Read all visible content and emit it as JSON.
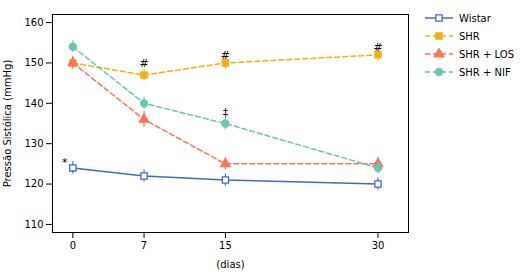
{
  "chart_data": {
    "type": "line",
    "xlabel": "(dias)",
    "ylabel": "Pressão Sistólica (mmHg)",
    "x": [
      0,
      7,
      15,
      30
    ],
    "xlim": [
      -2,
      33
    ],
    "xticks": [
      0,
      7,
      15,
      30
    ],
    "ylim": [
      108,
      162
    ],
    "yticks": [
      110,
      120,
      130,
      140,
      150,
      160
    ],
    "grid": false,
    "legend": "right",
    "series": [
      {
        "name": "Wistar",
        "values": [
          124,
          122,
          121,
          120
        ],
        "errors": [
          1.5,
          1.5,
          1.5,
          1.5
        ],
        "marker": "open-square",
        "line_style": "solid"
      },
      {
        "name": "SHR",
        "values": [
          150,
          147,
          150,
          152
        ],
        "errors": [
          1.5,
          1.5,
          1.5,
          1.5
        ],
        "marker": "square",
        "line_style": "dashed"
      },
      {
        "name": "SHR + LOS",
        "values": [
          150,
          136,
          125,
          125
        ],
        "errors": [
          1.5,
          2.0,
          1.5,
          1.5
        ],
        "marker": "triangle",
        "line_style": "dashed"
      },
      {
        "name": "SHR + NIF",
        "values": [
          154,
          140,
          135,
          124
        ],
        "errors": [
          1.5,
          1.5,
          1.5,
          1.5
        ],
        "marker": "circle",
        "line_style": "dashed"
      }
    ],
    "annotations": [
      {
        "text": "#",
        "x": 7,
        "y": 149
      },
      {
        "text": "#",
        "x": 15,
        "y": 151
      },
      {
        "text": "#",
        "x": 30,
        "y": 153
      },
      {
        "text": "*",
        "x": -0.8,
        "y": 124.5
      },
      {
        "text": "‡",
        "x": 15,
        "y": 136.8
      }
    ]
  }
}
